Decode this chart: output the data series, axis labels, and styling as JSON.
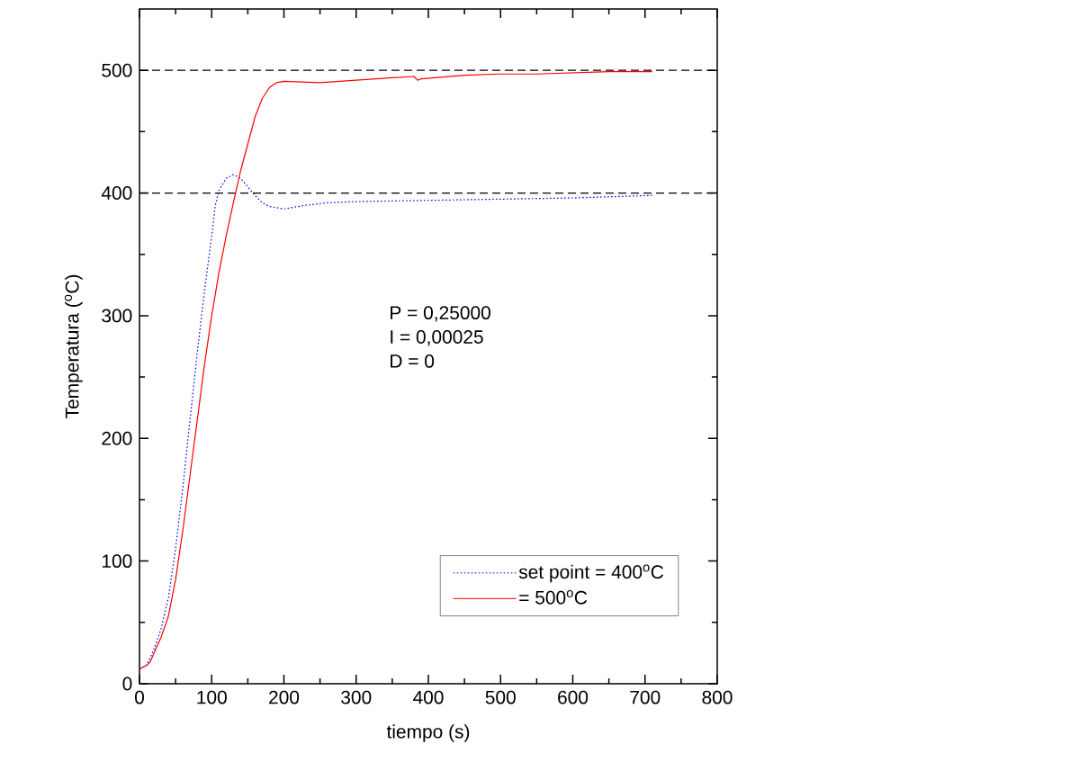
{
  "chart_data": {
    "type": "line",
    "xlabel": "tiempo (s)",
    "ylabel": "Temperatura ($^{o}$C)",
    "xlim": [
      0,
      800
    ],
    "ylim": [
      0,
      550
    ],
    "xticks": [
      0,
      100,
      200,
      300,
      400,
      500,
      600,
      700,
      800
    ],
    "yticks": [
      0,
      100,
      200,
      300,
      400,
      500
    ],
    "legend": "bottom",
    "annotations": [
      "P = 0,25000",
      "I = 0,00025",
      "D = 0"
    ],
    "ref_lines": [
      {
        "axis": "y",
        "value": 400,
        "color": "#000000",
        "line_style": "dashed"
      },
      {
        "axis": "y",
        "value": 500,
        "color": "#000000",
        "line_style": "dashed"
      }
    ],
    "series": [
      {
        "name": "set point = 400$^{o}$C",
        "color": "#0000ff",
        "line_style": "dotted",
        "x": [
          0,
          10,
          20,
          30,
          40,
          50,
          60,
          70,
          80,
          90,
          100,
          105,
          110,
          120,
          130,
          140,
          150,
          160,
          170,
          180,
          200,
          230,
          260,
          300,
          400,
          500,
          600,
          710
        ],
        "values": [
          12,
          15,
          28,
          45,
          70,
          110,
          160,
          215,
          270,
          320,
          365,
          390,
          402,
          412,
          415,
          412,
          405,
          398,
          392,
          389,
          387,
          390,
          392,
          393,
          394,
          395,
          396,
          398
        ]
      },
      {
        "name": "= 500$^{o}$C",
        "color": "#ff0000",
        "line_style": "solid",
        "x": [
          0,
          10,
          15,
          20,
          30,
          40,
          50,
          60,
          70,
          80,
          90,
          100,
          110,
          120,
          130,
          140,
          150,
          160,
          170,
          180,
          190,
          200,
          250,
          300,
          350,
          380,
          385,
          390,
          450,
          500,
          550,
          600,
          650,
          710
        ],
        "values": [
          12,
          15,
          18,
          25,
          38,
          55,
          85,
          125,
          170,
          215,
          260,
          300,
          335,
          365,
          392,
          418,
          440,
          462,
          477,
          486,
          490,
          491,
          490,
          492,
          494,
          495,
          492,
          493,
          496,
          497,
          497,
          498,
          499,
          499
        ]
      }
    ]
  }
}
